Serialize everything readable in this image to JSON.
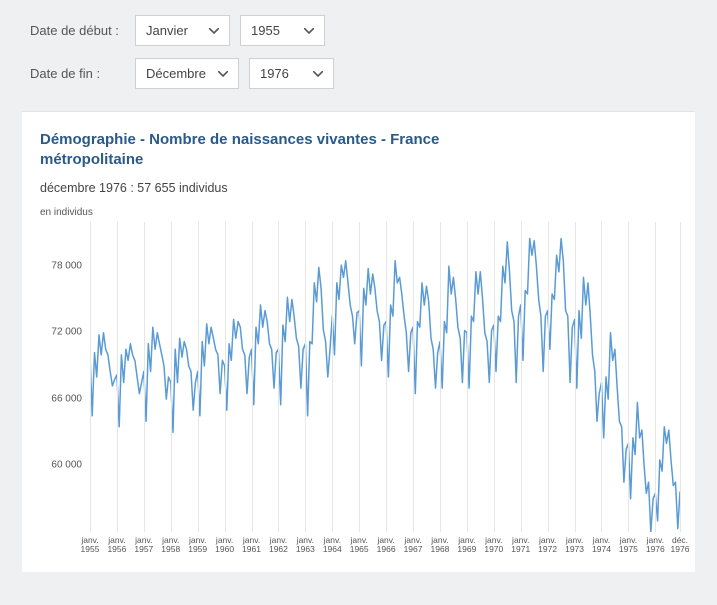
{
  "controls": {
    "start_label": "Date de début :",
    "end_label": "Date de fin :",
    "start_month": "Janvier",
    "start_year": "1955",
    "end_month": "Décembre",
    "end_year": "1976"
  },
  "chart": {
    "type": "line",
    "title": "Démographie - Nombre de naissances vivantes - France métropolitaine",
    "subtitle": "décembre 1976 : 57 655 individus",
    "unit_label": "en individus",
    "line_color": "#5a9bd5",
    "line_width": 1.5,
    "grid_color": "#e6e6e6",
    "background_color": "#ffffff",
    "y_axis": {
      "min": 54000,
      "max": 82000,
      "ticks": [
        60000,
        66000,
        72000,
        78000
      ],
      "tick_labels": [
        "60 000",
        "66 000",
        "72 000",
        "78 000"
      ]
    },
    "x_axis": {
      "start": "1955-01",
      "end": "1976-12",
      "labels": [
        {
          "top": "janv.",
          "bottom": "1955"
        },
        {
          "top": "janv.",
          "bottom": "1956"
        },
        {
          "top": "janv.",
          "bottom": "1957"
        },
        {
          "top": "janv.",
          "bottom": "1958"
        },
        {
          "top": "janv.",
          "bottom": "1959"
        },
        {
          "top": "janv.",
          "bottom": "1960"
        },
        {
          "top": "janv.",
          "bottom": "1961"
        },
        {
          "top": "janv.",
          "bottom": "1962"
        },
        {
          "top": "janv.",
          "bottom": "1963"
        },
        {
          "top": "janv.",
          "bottom": "1964"
        },
        {
          "top": "janv.",
          "bottom": "1965"
        },
        {
          "top": "janv.",
          "bottom": "1966"
        },
        {
          "top": "janv.",
          "bottom": "1967"
        },
        {
          "top": "janv.",
          "bottom": "1968"
        },
        {
          "top": "janv.",
          "bottom": "1969"
        },
        {
          "top": "janv.",
          "bottom": "1970"
        },
        {
          "top": "janv.",
          "bottom": "1971"
        },
        {
          "top": "janv.",
          "bottom": "1972"
        },
        {
          "top": "janv.",
          "bottom": "1973"
        },
        {
          "top": "janv.",
          "bottom": "1974"
        },
        {
          "top": "janv.",
          "bottom": "1975"
        },
        {
          "top": "janv.",
          "bottom": "1976"
        },
        {
          "top": "déc.",
          "bottom": "1976"
        }
      ]
    },
    "series": [
      70000,
      64500,
      70200,
      68000,
      71800,
      70000,
      72000,
      70500,
      70000,
      68500,
      67200,
      67800,
      68200,
      63500,
      70000,
      67500,
      70500,
      69500,
      71000,
      70000,
      69500,
      68000,
      66500,
      67500,
      68500,
      64000,
      71000,
      68500,
      72500,
      70500,
      72000,
      71000,
      70000,
      69000,
      66000,
      68000,
      67500,
      63000,
      70500,
      67500,
      71500,
      69800,
      71200,
      70500,
      69000,
      68500,
      65000,
      67500,
      68500,
      64500,
      71200,
      69000,
      72800,
      71000,
      72500,
      71500,
      70500,
      70000,
      66500,
      69500,
      69000,
      65000,
      71000,
      69500,
      73200,
      71500,
      73000,
      72500,
      70500,
      70000,
      66500,
      69800,
      70500,
      65500,
      72500,
      71000,
      74500,
      72500,
      74000,
      73000,
      71000,
      70500,
      67000,
      70200,
      70500,
      65500,
      72700,
      71200,
      75200,
      73000,
      75000,
      73500,
      71500,
      70800,
      67000,
      70500,
      71000,
      64500,
      71200,
      71000,
      76500,
      74800,
      77900,
      76000,
      72300,
      71200,
      68000,
      70500,
      73500,
      70000,
      76500,
      75000,
      78100,
      77000,
      78500,
      76500,
      74500,
      73500,
      71000,
      73800,
      74000,
      69000,
      76000,
      74500,
      77800,
      75500,
      77300,
      76000,
      74000,
      73000,
      69500,
      72700,
      73000,
      68000,
      74500,
      73500,
      78500,
      76500,
      77000,
      75500,
      73500,
      72000,
      68500,
      72000,
      72500,
      66500,
      73000,
      72500,
      76500,
      74500,
      76200,
      74800,
      71500,
      70500,
      67000,
      70200,
      71200,
      67000,
      73000,
      72000,
      78000,
      75500,
      77000,
      75000,
      72500,
      71500,
      67500,
      72200,
      72000,
      67000,
      73500,
      73000,
      77500,
      75500,
      77500,
      75000,
      72000,
      71200,
      67500,
      72200,
      72700,
      68500,
      73500,
      73000,
      78000,
      76500,
      80200,
      77500,
      74000,
      73000,
      67500,
      73500,
      74500,
      69500,
      75800,
      75500,
      80500,
      79000,
      80300,
      78000,
      75000,
      73500,
      68500,
      73500,
      74000,
      70500,
      75500,
      75000,
      79000,
      77500,
      80500,
      78500,
      74000,
      73500,
      67500,
      72500,
      73200,
      67000,
      74000,
      71500,
      77000,
      74500,
      76500,
      73500,
      70000,
      68500,
      64000,
      66500,
      67500,
      62500,
      68000,
      66000,
      72000,
      69500,
      70500,
      67000,
      64000,
      63500,
      58500,
      61500,
      62000,
      57000,
      62500,
      61000,
      65700,
      62500,
      63200,
      60000,
      57500,
      58500,
      54000,
      57000,
      57500,
      55000,
      60500,
      59500,
      63500,
      62000,
      63200,
      60500,
      58200,
      58500,
      54300,
      57655
    ]
  }
}
